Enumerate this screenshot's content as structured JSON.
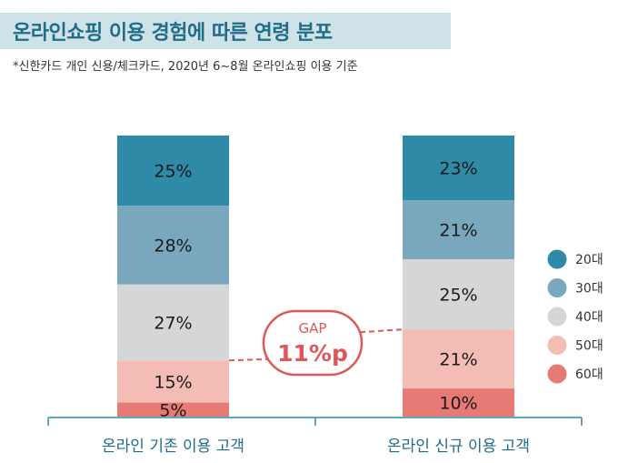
{
  "title": "온라인쇼핑 이용 경험에 따른 연령 분포",
  "subtitle": "*신한카드 개인 신용/체크카드, 2020년 6~8월 온라인쇼핑 이용 기준",
  "colors": {
    "20대": "#2e8aa6",
    "30대": "#79a7bd",
    "40대": "#d5d6d8",
    "50대": "#f3bdb5",
    "60대": "#e77a74",
    "title_band": "#cfe2e8",
    "title_text": "#1f6d87",
    "gap": "#e0575b",
    "axis": "#2e8aa6"
  },
  "chart_data": {
    "type": "bar",
    "stacked": true,
    "categories": [
      "온라인 기존 이용 고객",
      "온라인 신규 이용 고객"
    ],
    "series": [
      {
        "name": "20대",
        "values": [
          25,
          23
        ]
      },
      {
        "name": "30대",
        "values": [
          28,
          21
        ]
      },
      {
        "name": "40대",
        "values": [
          27,
          25
        ]
      },
      {
        "name": "50대",
        "values": [
          15,
          21
        ]
      },
      {
        "name": "60대",
        "values": [
          5,
          10
        ]
      }
    ],
    "labels": [
      [
        "25%",
        "23%"
      ],
      [
        "28%",
        "21%"
      ],
      [
        "27%",
        "25%"
      ],
      [
        "15%",
        "21%"
      ],
      [
        "5%",
        "10%"
      ]
    ],
    "annotation": {
      "label": "GAP",
      "value": "11%p"
    },
    "legend": "right",
    "ylim": [
      0,
      100
    ]
  }
}
